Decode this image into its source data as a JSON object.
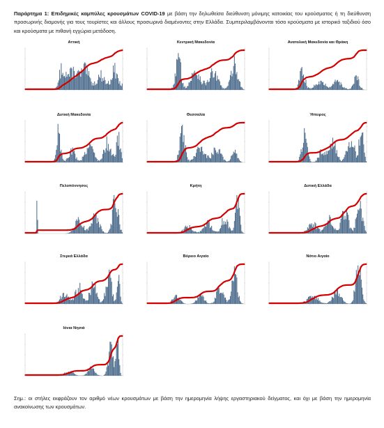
{
  "header": {
    "lead": "Παράρτημα 1: Επιδημικές καμπύλες κρουσμάτων COVID-19",
    "text": " με βάση την δηλωθείσα διεύθυνση μόνιμης κατοικίας του κρούσματος ή τη διεύθυνση προσωρινής διαμονής για τους τουρίστες και άλλους προσωρινά διαμένοντες στην Ελλάδα. Συμπεριλαμβάνονται τόσο κρούσματα με ιστορικό ταξιδιού όσο και κρούσματα με πιθανή εγχώρια μετάδοση."
  },
  "footnote": "Σημ.: οι στήλες εκφράζουν τον αριθμό νέων κρουσμάτων με βάση την ημερομηνία λήψης εργαστηριακού δείγματος, και όχι με βάση την ημερομηνία ανακοίνωσης των κρουσμάτων.",
  "colors": {
    "bars": "#4f6e8e",
    "cumulative_line": "#d40000"
  },
  "chart_data": [
    {
      "type": "bar",
      "title": "Αττική",
      "profile": "attica",
      "cumulative": true,
      "peak": 0.66
    },
    {
      "type": "bar",
      "title": "Κεντρική Μακεδονία",
      "profile": "central_macedonia",
      "cumulative": true,
      "peak": 0.88
    },
    {
      "type": "bar",
      "title": "Ανατολική Μακεδονία και Θράκη",
      "profile": "east_macedonia",
      "cumulative": true,
      "peak": 0.55
    },
    {
      "type": "bar",
      "title": "Δυτική Μακεδονία",
      "profile": "west_macedonia",
      "cumulative": true,
      "peak": 0.92
    },
    {
      "type": "bar",
      "title": "Θεσσαλία",
      "profile": "thessaly",
      "cumulative": true,
      "peak": 0.9
    },
    {
      "type": "bar",
      "title": "Ήπειρος",
      "profile": "epirus",
      "cumulative": true,
      "peak": 0.82
    },
    {
      "type": "bar",
      "title": "Πελοπόννησος",
      "profile": "peloponnese",
      "cumulative": true,
      "peak": 0.92
    },
    {
      "type": "bar",
      "title": "Κρήτη",
      "profile": "crete",
      "cumulative": true,
      "peak": 0.92
    },
    {
      "type": "bar",
      "title": "Δυτική Ελλάδα",
      "profile": "west_greece",
      "cumulative": true,
      "peak": 0.78
    },
    {
      "type": "bar",
      "title": "Στερεά Ελλάδα",
      "profile": "central_greece",
      "cumulative": true,
      "peak": 0.82
    },
    {
      "type": "bar",
      "title": "Βόρειο Αιγαίο",
      "profile": "north_aegean",
      "cumulative": true,
      "peak": 0.9
    },
    {
      "type": "bar",
      "title": "Νότιο Αιγαίο",
      "profile": "south_aegean",
      "cumulative": true,
      "peak": 0.92
    },
    {
      "type": "bar",
      "title": "Ιόνια Νησιά",
      "profile": "ionian",
      "cumulative": true,
      "peak": 0.88
    }
  ]
}
